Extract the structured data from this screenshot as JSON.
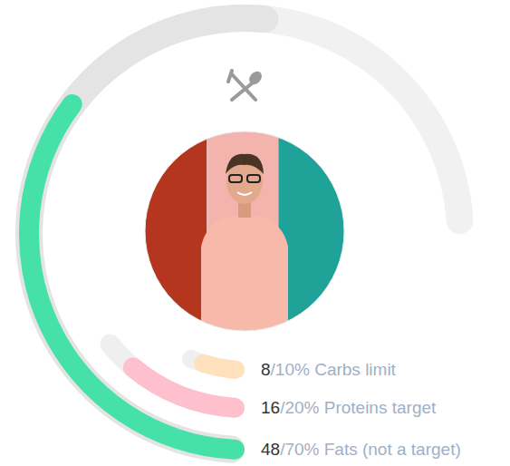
{
  "chart_data": {
    "type": "radial_bar",
    "categories": [
      "Carbs limit",
      "Proteins target",
      "Fats (not a target)"
    ],
    "values": [
      8,
      16,
      48
    ],
    "value_labels": [
      "8/10%",
      "16/20%",
      "48/70%"
    ],
    "targets": [
      10,
      20,
      70
    ],
    "colors": [
      "#ffe2bd",
      "#ffc0cd",
      "#45e1a8"
    ],
    "ylim": [
      0,
      100
    ]
  }
}
